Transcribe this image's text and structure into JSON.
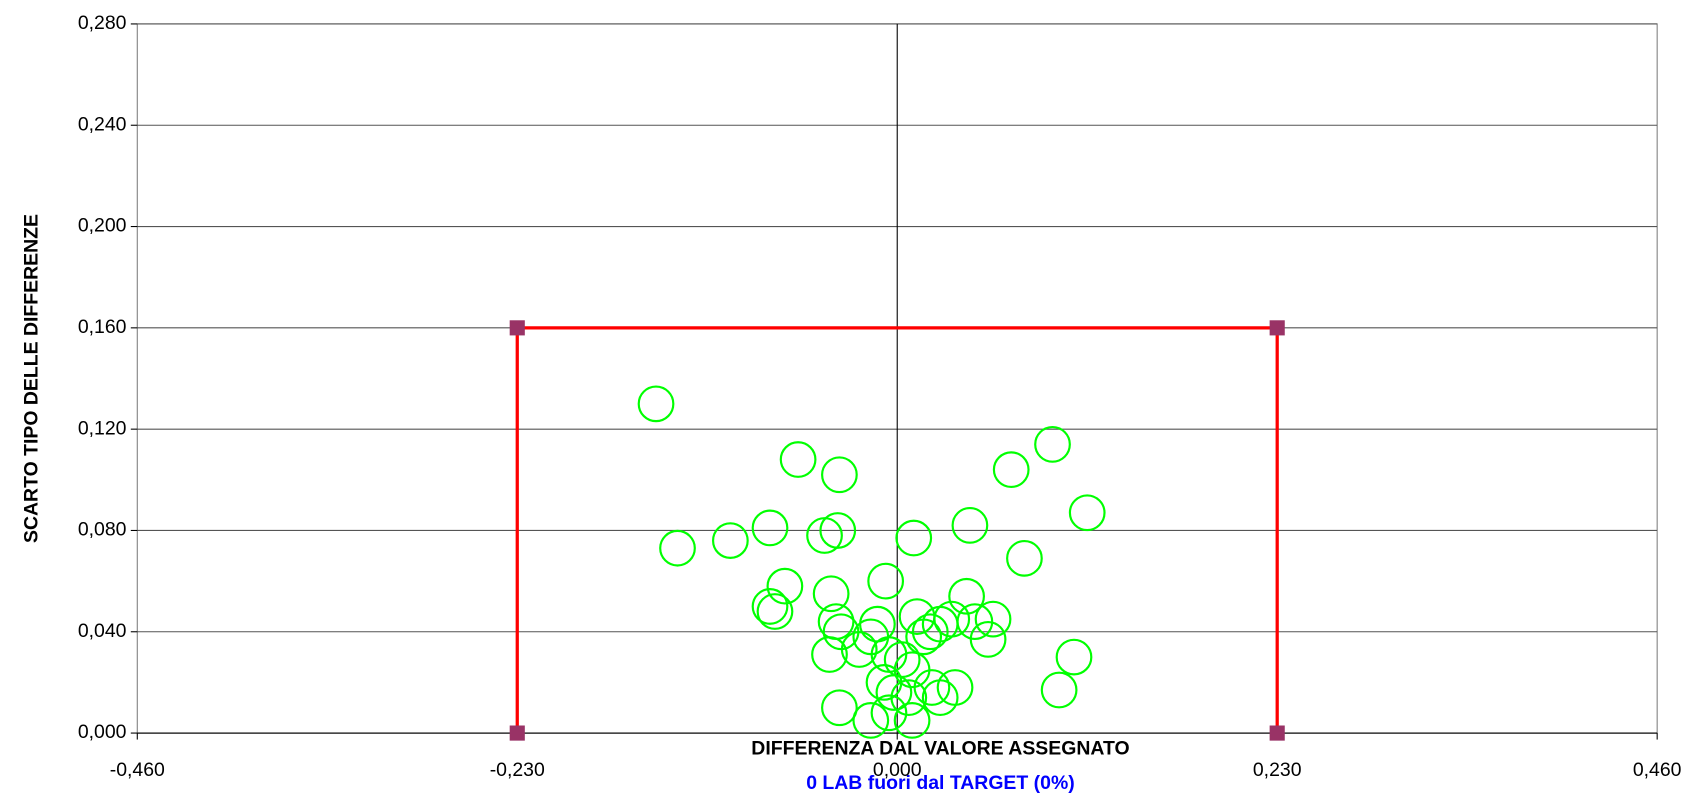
{
  "chart_data": {
    "type": "scatter",
    "x_label": "DIFFERENZA DAL VALORE ASSEGNATO",
    "annotation": "0  LAB fuori dal TARGET (0%)",
    "y_label": "SCARTO TIPO DELLE DIFFERENZE",
    "xlim": [
      -0.46,
      0.46
    ],
    "ylim": [
      0,
      0.28
    ],
    "xticks": [
      {
        "value": -0.46,
        "label": "-0,460"
      },
      {
        "value": -0.23,
        "label": "-0,230"
      },
      {
        "value": 0,
        "label": "0,000"
      },
      {
        "value": 0.23,
        "label": "0,230"
      },
      {
        "value": 0.46,
        "label": "0,460"
      }
    ],
    "yticks": [
      {
        "value": 0,
        "label": "0,000"
      },
      {
        "value": 0.04,
        "label": "0,040"
      },
      {
        "value": 0.08,
        "label": "0,080"
      },
      {
        "value": 0.12,
        "label": "0,120"
      },
      {
        "value": 0.16,
        "label": "0,160"
      },
      {
        "value": 0.2,
        "label": "0,200"
      },
      {
        "value": 0.24,
        "label": "0,240"
      },
      {
        "value": 0.28,
        "label": "0,280"
      }
    ],
    "grid": true,
    "series": [
      {
        "color": "#00ff00",
        "marker": "circle",
        "x": [
          -0.146,
          -0.133,
          -0.101,
          -0.077,
          -0.06,
          -0.035,
          -0.044,
          -0.036,
          0.01,
          0.044,
          0.069,
          0.094,
          0.115,
          0.077,
          -0.007,
          -0.068,
          -0.077,
          -0.074,
          -0.04,
          -0.037,
          -0.034,
          -0.041,
          -0.023,
          -0.012,
          -0.016,
          -0.005,
          0.003,
          0.009,
          0.012,
          0.02,
          0.026,
          0.042,
          0.047,
          0.058,
          0.055,
          0.033,
          0.107,
          0.098,
          0.035,
          0.026,
          0.021,
          0.007,
          -0.008,
          -0.002,
          -0.035,
          -0.016,
          -0.005,
          0.009,
          0.016
        ],
        "values": [
          0.13,
          0.073,
          0.076,
          0.081,
          0.108,
          0.102,
          0.078,
          0.08,
          0.077,
          0.082,
          0.104,
          0.114,
          0.087,
          0.069,
          0.06,
          0.058,
          0.05,
          0.048,
          0.055,
          0.044,
          0.04,
          0.031,
          0.033,
          0.043,
          0.038,
          0.031,
          0.029,
          0.025,
          0.046,
          0.04,
          0.043,
          0.054,
          0.044,
          0.045,
          0.037,
          0.045,
          0.03,
          0.017,
          0.018,
          0.014,
          0.018,
          0.014,
          0.02,
          0.016,
          0.01,
          0.005,
          0.008,
          0.005,
          0.038
        ]
      },
      {
        "color": "#ff0000",
        "marker": "square",
        "marker_color": "#993366",
        "x": [
          -0.23,
          -0.23,
          0.23,
          0.23
        ],
        "values": [
          0,
          0.16,
          0.16,
          0
        ]
      }
    ]
  }
}
